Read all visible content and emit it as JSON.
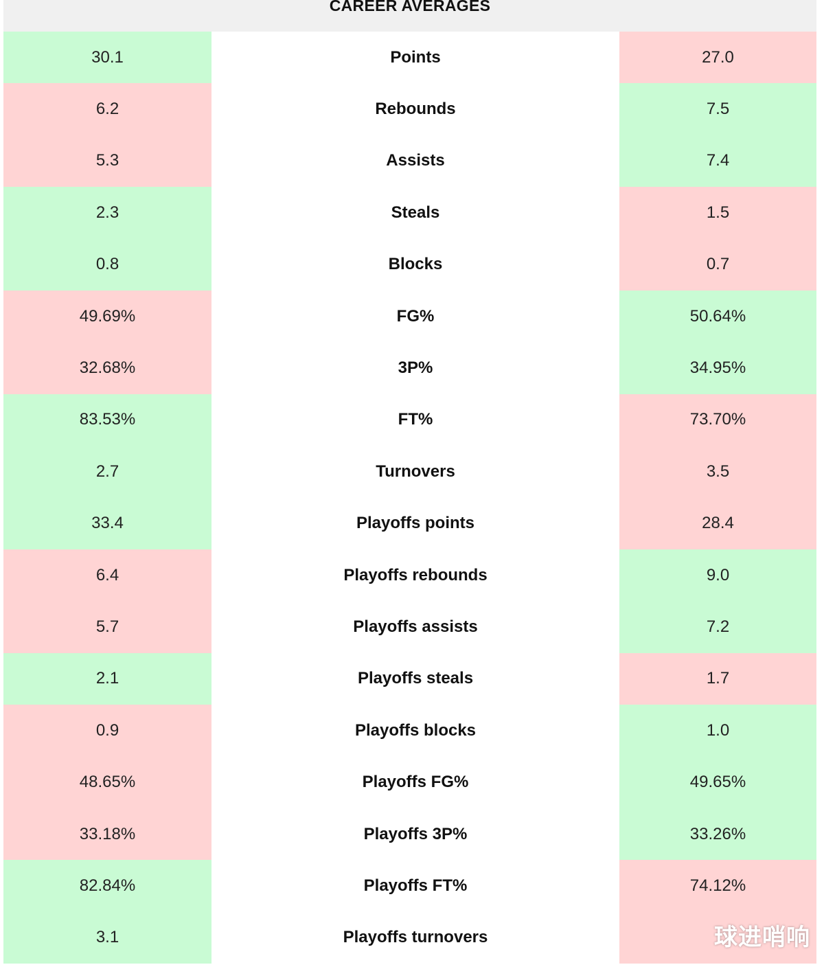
{
  "header": {
    "title": "CAREER AVERAGES"
  },
  "colors": {
    "better": "#c9fbd4",
    "worse": "#ffd4d4"
  },
  "rows": [
    {
      "label": "Points",
      "left": "30.1",
      "right": "27.0",
      "left_better": true
    },
    {
      "label": "Rebounds",
      "left": "6.2",
      "right": "7.5",
      "left_better": false
    },
    {
      "label": "Assists",
      "left": "5.3",
      "right": "7.4",
      "left_better": false
    },
    {
      "label": "Steals",
      "left": "2.3",
      "right": "1.5",
      "left_better": true
    },
    {
      "label": "Blocks",
      "left": "0.8",
      "right": "0.7",
      "left_better": true
    },
    {
      "label": "FG%",
      "left": "49.69%",
      "right": "50.64%",
      "left_better": false
    },
    {
      "label": "3P%",
      "left": "32.68%",
      "right": "34.95%",
      "left_better": false
    },
    {
      "label": "FT%",
      "left": "83.53%",
      "right": "73.70%",
      "left_better": true
    },
    {
      "label": "Turnovers",
      "left": "2.7",
      "right": "3.5",
      "left_better": true
    },
    {
      "label": "Playoffs points",
      "left": "33.4",
      "right": "28.4",
      "left_better": true
    },
    {
      "label": "Playoffs rebounds",
      "left": "6.4",
      "right": "9.0",
      "left_better": false
    },
    {
      "label": "Playoffs assists",
      "left": "5.7",
      "right": "7.2",
      "left_better": false
    },
    {
      "label": "Playoffs steals",
      "left": "2.1",
      "right": "1.7",
      "left_better": true
    },
    {
      "label": "Playoffs blocks",
      "left": "0.9",
      "right": "1.0",
      "left_better": false
    },
    {
      "label": "Playoffs FG%",
      "left": "48.65%",
      "right": "49.65%",
      "left_better": false
    },
    {
      "label": "Playoffs 3P%",
      "left": "33.18%",
      "right": "33.26%",
      "left_better": false
    },
    {
      "label": "Playoffs FT%",
      "left": "82.84%",
      "right": "74.12%",
      "left_better": true
    },
    {
      "label": "Playoffs turnovers",
      "left": "3.1",
      "right": "",
      "left_better": true
    }
  ],
  "watermark": "球进哨响"
}
